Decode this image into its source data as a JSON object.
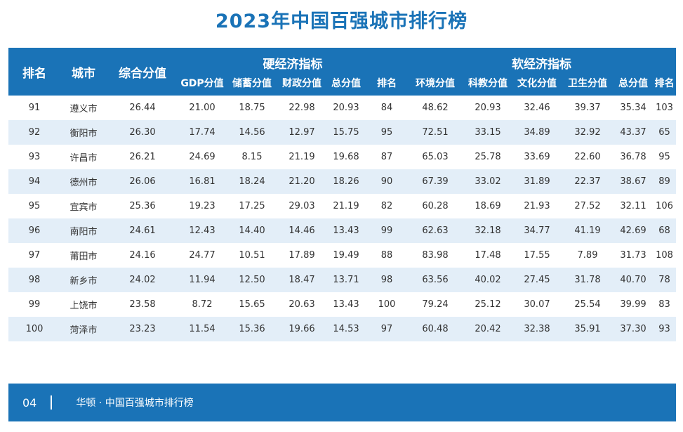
{
  "title": "2023年中国百强城市排行榜",
  "header": {
    "rank": "排名",
    "city": "城市",
    "score": "综合分值",
    "hard_group": "硬经济指标",
    "soft_group": "软经济指标",
    "hard_cols": [
      "GDP分值",
      "储蓄分值",
      "财政分值",
      "总分值",
      "排名"
    ],
    "soft_cols": [
      "环境分值",
      "科教分值",
      "文化分值",
      "卫生分值",
      "总分值",
      "排名"
    ]
  },
  "rows": [
    [
      "91",
      "遵义市",
      "26.44",
      "21.00",
      "18.75",
      "22.98",
      "20.93",
      "84",
      "48.62",
      "20.93",
      "32.46",
      "39.37",
      "35.34",
      "103"
    ],
    [
      "92",
      "衡阳市",
      "26.30",
      "17.74",
      "14.56",
      "12.97",
      "15.75",
      "95",
      "72.51",
      "33.15",
      "34.89",
      "32.92",
      "43.37",
      "65"
    ],
    [
      "93",
      "许昌市",
      "26.21",
      "24.69",
      "8.15",
      "21.19",
      "19.68",
      "87",
      "65.03",
      "25.78",
      "33.69",
      "22.60",
      "36.78",
      "95"
    ],
    [
      "94",
      "德州市",
      "26.06",
      "16.81",
      "18.24",
      "21.20",
      "18.26",
      "90",
      "67.39",
      "33.02",
      "31.89",
      "22.37",
      "38.67",
      "89"
    ],
    [
      "95",
      "宜宾市",
      "25.36",
      "19.23",
      "17.25",
      "29.03",
      "21.19",
      "82",
      "60.28",
      "18.69",
      "21.93",
      "27.52",
      "32.11",
      "106"
    ],
    [
      "96",
      "南阳市",
      "24.61",
      "12.43",
      "14.40",
      "14.46",
      "13.43",
      "99",
      "62.63",
      "32.18",
      "34.77",
      "41.19",
      "42.69",
      "68"
    ],
    [
      "97",
      "莆田市",
      "24.16",
      "24.77",
      "10.51",
      "17.89",
      "19.49",
      "88",
      "83.98",
      "17.48",
      "17.55",
      "7.89",
      "31.73",
      "108"
    ],
    [
      "98",
      "新乡市",
      "24.02",
      "11.94",
      "12.50",
      "18.47",
      "13.71",
      "98",
      "63.56",
      "40.02",
      "27.45",
      "31.78",
      "40.70",
      "78"
    ],
    [
      "99",
      "上饶市",
      "23.58",
      "8.72",
      "15.65",
      "20.63",
      "13.43",
      "100",
      "79.24",
      "25.12",
      "30.07",
      "25.54",
      "39.99",
      "83"
    ],
    [
      "100",
      "菏泽市",
      "23.23",
      "11.54",
      "15.36",
      "19.66",
      "14.53",
      "97",
      "60.48",
      "20.42",
      "32.38",
      "35.91",
      "37.30",
      "93"
    ]
  ],
  "footer": {
    "page_number": "04",
    "text": "华顿 · 中国百强城市排行榜"
  }
}
